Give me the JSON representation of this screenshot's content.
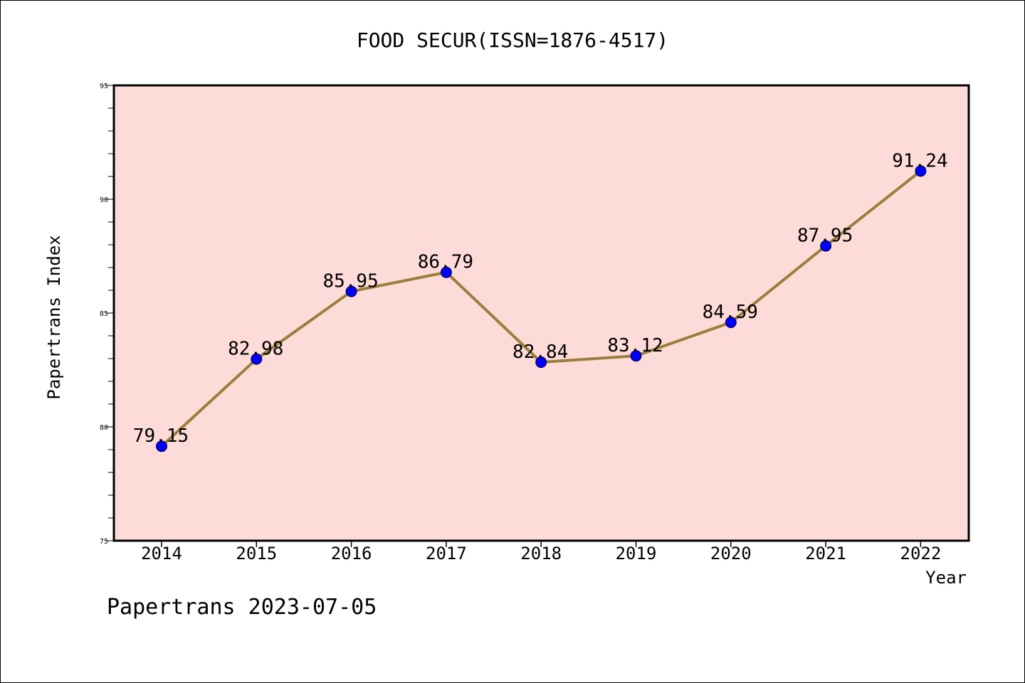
{
  "chart_data": {
    "type": "line",
    "title": "FOOD SECUR(ISSN=1876-4517)",
    "xlabel": "Year",
    "ylabel": "Papertrans Index",
    "categories": [
      "2014",
      "2015",
      "2016",
      "2017",
      "2018",
      "2019",
      "2020",
      "2021",
      "2022"
    ],
    "values": [
      79.15,
      82.98,
      85.95,
      86.79,
      82.84,
      83.12,
      84.59,
      87.95,
      91.24
    ],
    "data_labels": [
      "79.15",
      "82.98",
      "85.95",
      "86.79",
      "82.84",
      "83.12",
      "84.59",
      "87.95",
      "91.24"
    ],
    "ylim": [
      75,
      95
    ],
    "yticks": [
      75,
      80,
      85,
      90,
      95
    ],
    "grid": false,
    "colors": {
      "plot_background": "#fddbd8",
      "line": "#9a7f3c",
      "marker": "#0000ff"
    }
  },
  "footer": "Papertrans 2023-07-05"
}
